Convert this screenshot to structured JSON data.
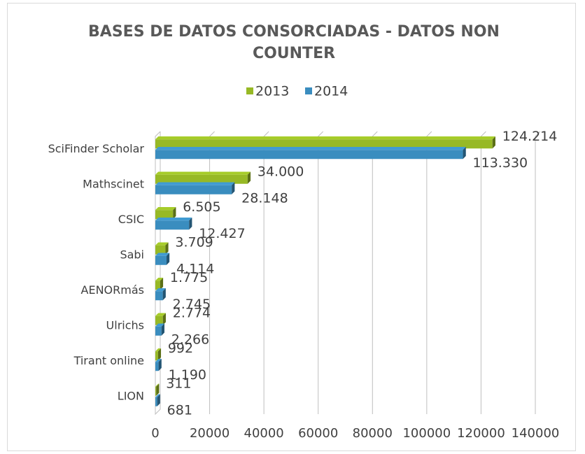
{
  "chart_data": {
    "type": "bar",
    "orientation": "horizontal",
    "title": "BASES DE DATOS CONSORCIADAS - DATOS NON COUNTER",
    "categories": [
      "SciFinder Scholar",
      "Mathscinet",
      "CSIC",
      "Sabi",
      "AENORmás",
      "Ulrichs",
      "Tirant online",
      "LION"
    ],
    "series": [
      {
        "name": "2013",
        "color": "#97b925",
        "values": [
          124214,
          34000,
          6505,
          3709,
          1775,
          2774,
          992,
          311
        ],
        "value_labels": [
          "124.214",
          "34.000",
          "6.505",
          "3.709",
          "1.775",
          "2.774",
          "992",
          "311"
        ]
      },
      {
        "name": "2014",
        "color": "#3a8dbf",
        "values": [
          113330,
          28148,
          12427,
          4114,
          2745,
          2266,
          1190,
          681
        ],
        "value_labels": [
          "113.330",
          "28.148",
          "12.427",
          "4.114",
          "2.745",
          "2.266",
          "1.190",
          "681"
        ]
      }
    ],
    "xlim": [
      0,
      140000
    ],
    "xticks": [
      0,
      20000,
      40000,
      60000,
      80000,
      100000,
      120000,
      140000
    ],
    "grid": true,
    "legend": "top"
  }
}
